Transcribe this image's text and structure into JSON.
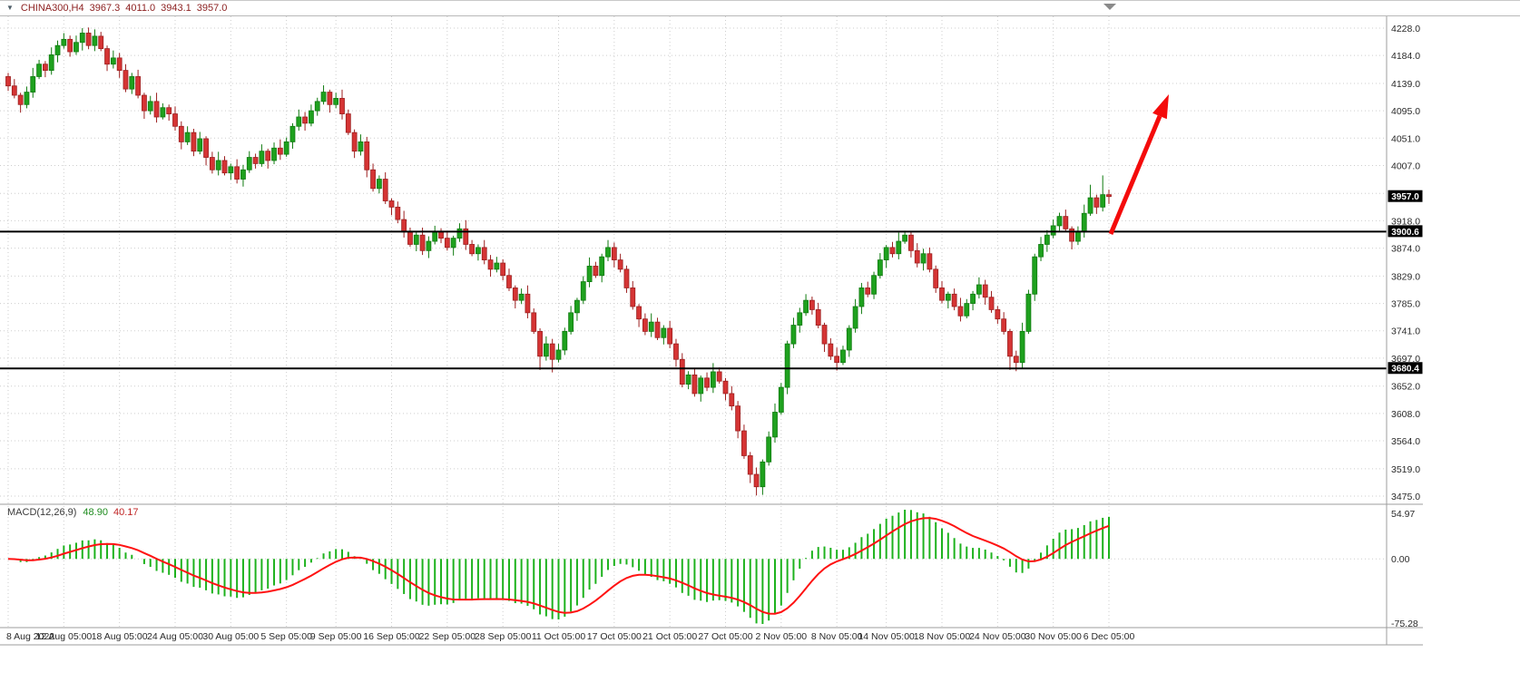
{
  "header": {
    "dropdown_icon": "▼",
    "symbol": "CHINA300,H4",
    "open": "3967.3",
    "high": "4011.0",
    "low": "3943.1",
    "close": "3957.0"
  },
  "chart_data": {
    "type": "candlestick",
    "title": "CHINA300 H4 with MACD(12,26,9)",
    "legend_position": "top-left overlay",
    "grid": "dotted",
    "price_axis": {
      "levels": [
        4228.0,
        4184.0,
        4139.0,
        4095.0,
        4051.0,
        4007.0,
        3962.0,
        3918.0,
        3874.0,
        3829.0,
        3785.0,
        3741.0,
        3697.0,
        3652.0,
        3608.0,
        3564.0,
        3519.0,
        3475.0
      ]
    },
    "time_labels": [
      "8 Aug 2022",
      "12 Aug 05:00",
      "18 Aug 05:00",
      "24 Aug 05:00",
      "30 Aug 05:00",
      "5 Sep 05:00",
      "9 Sep 05:00",
      "16 Sep 05:00",
      "22 Sep 05:00",
      "28 Sep 05:00",
      "11 Oct 05:00",
      "17 Oct 05:00",
      "21 Oct 05:00",
      "27 Oct 05:00",
      "2 Nov 05:00",
      "8 Nov 05:00",
      "14 Nov 05:00",
      "18 Nov 05:00",
      "24 Nov 05:00",
      "30 Nov 05:00",
      "6 Dec 05:00"
    ],
    "candles": {
      "first_open": 4150,
      "closes": [
        4135,
        4120,
        4105,
        4125,
        4150,
        4170,
        4160,
        4185,
        4200,
        4210,
        4190,
        4205,
        4220,
        4200,
        4215,
        4195,
        4170,
        4180,
        4160,
        4130,
        4150,
        4120,
        4095,
        4110,
        4085,
        4100,
        4090,
        4070,
        4045,
        4060,
        4030,
        4050,
        4020,
        4000,
        4015,
        3995,
        4005,
        3985,
        4000,
        4020,
        4010,
        4030,
        4015,
        4035,
        4025,
        4045,
        4070,
        4085,
        4075,
        4095,
        4110,
        4125,
        4105,
        4115,
        4090,
        4060,
        4030,
        4045,
        4000,
        3970,
        3985,
        3950,
        3940,
        3920,
        3900,
        3880,
        3895,
        3870,
        3885,
        3900,
        3890,
        3875,
        3890,
        3905,
        3880,
        3865,
        3875,
        3855,
        3840,
        3850,
        3830,
        3810,
        3790,
        3800,
        3770,
        3740,
        3700,
        3720,
        3695,
        3710,
        3740,
        3770,
        3790,
        3820,
        3845,
        3830,
        3860,
        3875,
        3855,
        3840,
        3810,
        3780,
        3760,
        3740,
        3755,
        3730,
        3745,
        3720,
        3695,
        3655,
        3670,
        3640,
        3665,
        3650,
        3675,
        3660,
        3640,
        3620,
        3580,
        3540,
        3510,
        3490,
        3530,
        3570,
        3610,
        3650,
        3720,
        3750,
        3770,
        3790,
        3775,
        3750,
        3720,
        3700,
        3690,
        3710,
        3745,
        3780,
        3810,
        3800,
        3830,
        3855,
        3875,
        3865,
        3885,
        3895,
        3870,
        3850,
        3865,
        3840,
        3810,
        3790,
        3800,
        3780,
        3765,
        3785,
        3800,
        3815,
        3795,
        3775,
        3760,
        3740,
        3700,
        3690,
        3740,
        3800,
        3860,
        3880,
        3895,
        3910,
        3925,
        3905,
        3885,
        3900,
        3930,
        3955,
        3940,
        3960,
        3957
      ],
      "wick_top_cycle": [
        6,
        11,
        4,
        9,
        14,
        7,
        5,
        12,
        8,
        10
      ],
      "wick_bottom_cycle": [
        8,
        5,
        13,
        6,
        9,
        4,
        11,
        7,
        12,
        5
      ],
      "overrides": {
        "12": {
          "high": 4228
        },
        "14": {
          "high": 4226
        },
        "86": {
          "low": 3678
        },
        "88": {
          "low": 3674
        },
        "120": {
          "low": 3496
        },
        "121": {
          "low": 3476
        },
        "134": {
          "low": 3677
        },
        "162": {
          "low": 3678
        },
        "163": {
          "low": 3676
        },
        "175": {
          "high": 3976
        },
        "177": {
          "high": 3991
        }
      }
    },
    "current_price": {
      "value": 3957.0,
      "tag_label": "3957.0"
    },
    "hlines": [
      {
        "value": 3900.6,
        "tag_label": "3900.6"
      },
      {
        "value": 3680.4,
        "tag_label": "3680.4"
      }
    ],
    "macd": {
      "name": "MACD(12,26,9)",
      "value_main": "48.90",
      "value_signal": "40.17",
      "params": [
        12,
        26,
        9
      ],
      "axis_labels": {
        "top": "54.97",
        "zero": "0.00",
        "bottom": "-75.28"
      },
      "histogram_color": "#1db21d",
      "signal_color": "#ff1212"
    },
    "annotations": [
      {
        "type": "arrow",
        "direction": "up-right",
        "meaning": "projected upward move from 3900.6 level",
        "color": "#f40b0b"
      }
    ],
    "colors": {
      "background": "#ffffff",
      "bull": "#1ea11e",
      "bull_stroke": "#0f7a0f",
      "bear": "#d53434",
      "bear_stroke": "#9c1f1f",
      "grid": "#cdcdcd",
      "separator": "#9e9e9e",
      "axis_text": "#2a2a2a",
      "hline": "#000000",
      "tag_bg": "#000000",
      "tag_text": "#ffffff",
      "symbol_text": "#8b1e1e",
      "shift_marker": "#8a8a8a"
    }
  }
}
